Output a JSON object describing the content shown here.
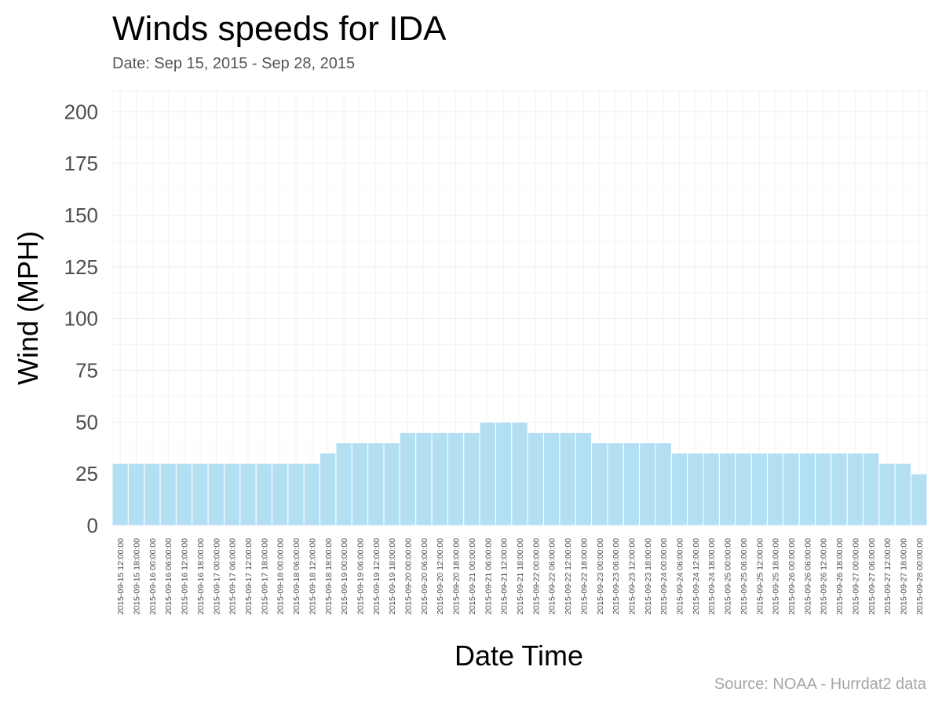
{
  "chart_data": {
    "type": "bar",
    "title": "Winds speeds for IDA",
    "subtitle": "Date:  Sep 15, 2015 - Sep 28, 2015",
    "xlabel": "Date Time",
    "ylabel": "Wind (MPH)",
    "caption": "Source: NOAA - Hurrdat2 data",
    "ylim": [
      0,
      210
    ],
    "yticks": [
      0,
      25,
      50,
      75,
      100,
      125,
      150,
      175,
      200
    ],
    "grid": true,
    "bar_color": "#b3dff3",
    "categories": [
      "2015-09-15 12:00:00",
      "2015-09-15 18:00:00",
      "2015-09-16 00:00:00",
      "2015-09-16 06:00:00",
      "2015-09-16 12:00:00",
      "2015-09-16 18:00:00",
      "2015-09-17 00:00:00",
      "2015-09-17 06:00:00",
      "2015-09-17 12:00:00",
      "2015-09-17 18:00:00",
      "2015-09-18 00:00:00",
      "2015-09-18 06:00:00",
      "2015-09-18 12:00:00",
      "2015-09-18 18:00:00",
      "2015-09-19 00:00:00",
      "2015-09-19 06:00:00",
      "2015-09-19 12:00:00",
      "2015-09-19 18:00:00",
      "2015-09-20 00:00:00",
      "2015-09-20 06:00:00",
      "2015-09-20 12:00:00",
      "2015-09-20 18:00:00",
      "2015-09-21 00:00:00",
      "2015-09-21 06:00:00",
      "2015-09-21 12:00:00",
      "2015-09-21 18:00:00",
      "2015-09-22 00:00:00",
      "2015-09-22 06:00:00",
      "2015-09-22 12:00:00",
      "2015-09-22 18:00:00",
      "2015-09-23 00:00:00",
      "2015-09-23 06:00:00",
      "2015-09-23 12:00:00",
      "2015-09-23 18:00:00",
      "2015-09-24 00:00:00",
      "2015-09-24 06:00:00",
      "2015-09-24 12:00:00",
      "2015-09-24 18:00:00",
      "2015-09-25 00:00:00",
      "2015-09-25 06:00:00",
      "2015-09-25 12:00:00",
      "2015-09-25 18:00:00",
      "2015-09-26 00:00:00",
      "2015-09-26 06:00:00",
      "2015-09-26 12:00:00",
      "2015-09-26 18:00:00",
      "2015-09-27 00:00:00",
      "2015-09-27 06:00:00",
      "2015-09-27 12:00:00",
      "2015-09-27 18:00:00",
      "2015-09-28 00:00:00"
    ],
    "values": [
      30,
      30,
      30,
      30,
      30,
      30,
      30,
      30,
      30,
      30,
      30,
      30,
      30,
      35,
      40,
      40,
      40,
      40,
      45,
      45,
      45,
      45,
      45,
      50,
      50,
      50,
      45,
      45,
      45,
      45,
      40,
      40,
      40,
      40,
      40,
      35,
      35,
      35,
      35,
      35,
      35,
      35,
      35,
      35,
      35,
      35,
      35,
      35,
      30,
      30,
      25
    ]
  }
}
